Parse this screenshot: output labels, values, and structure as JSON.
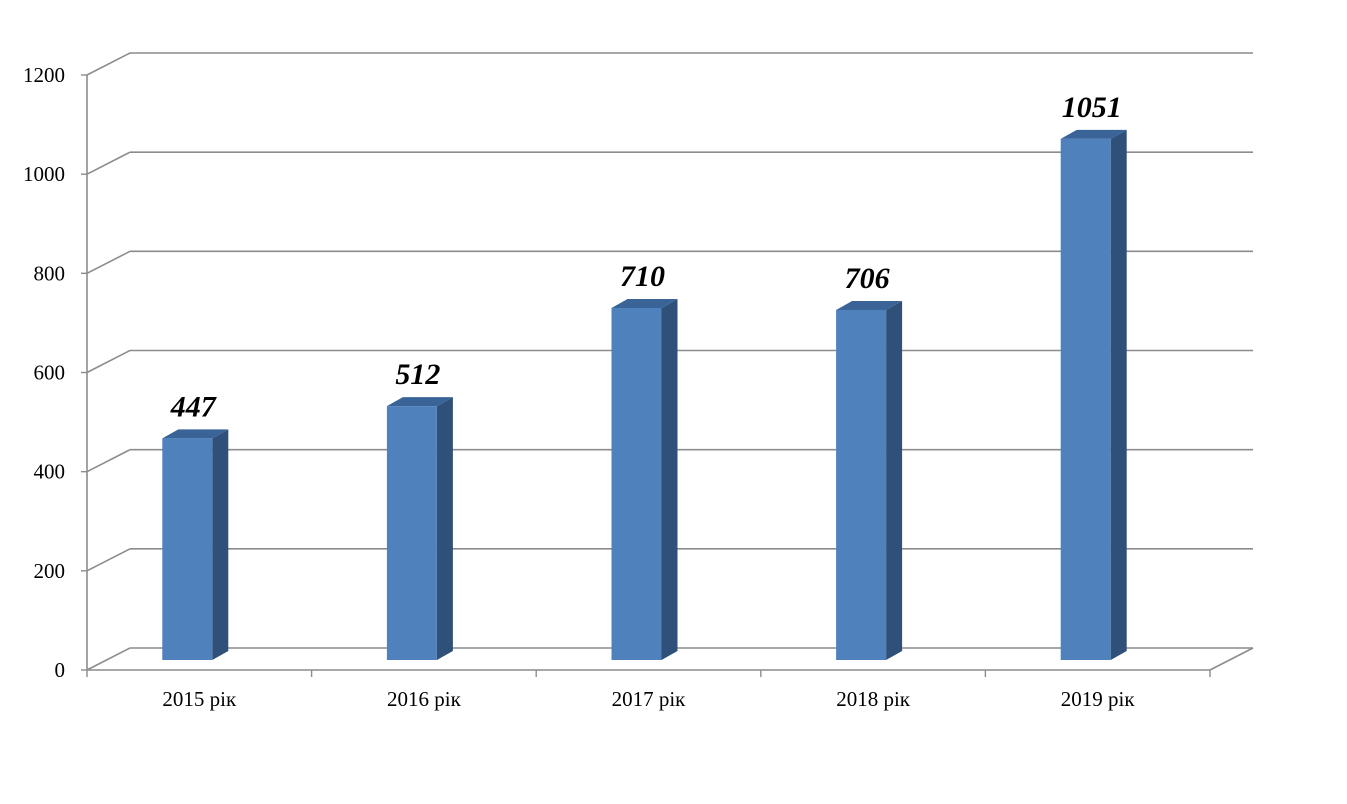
{
  "chart_data": {
    "type": "bar",
    "style": "3d-column",
    "categories": [
      "2015 рік",
      "2016 рік",
      "2017 рік",
      "2018 рік",
      "2019 рік"
    ],
    "values": [
      447,
      512,
      710,
      706,
      1051
    ],
    "title": "",
    "xlabel": "",
    "ylabel": "",
    "ylim": [
      0,
      1200
    ],
    "yticks": [
      "0",
      "200",
      "400",
      "600",
      "800",
      "1000",
      "1200"
    ],
    "grid": true,
    "legend": "none",
    "data_labels": true,
    "colors": {
      "bar_front": "#4f81bd",
      "bar_side": "#2f5079",
      "bar_top": "#3a6497",
      "grid": "#8c8c8c",
      "axis": "#8c8c8c"
    }
  }
}
